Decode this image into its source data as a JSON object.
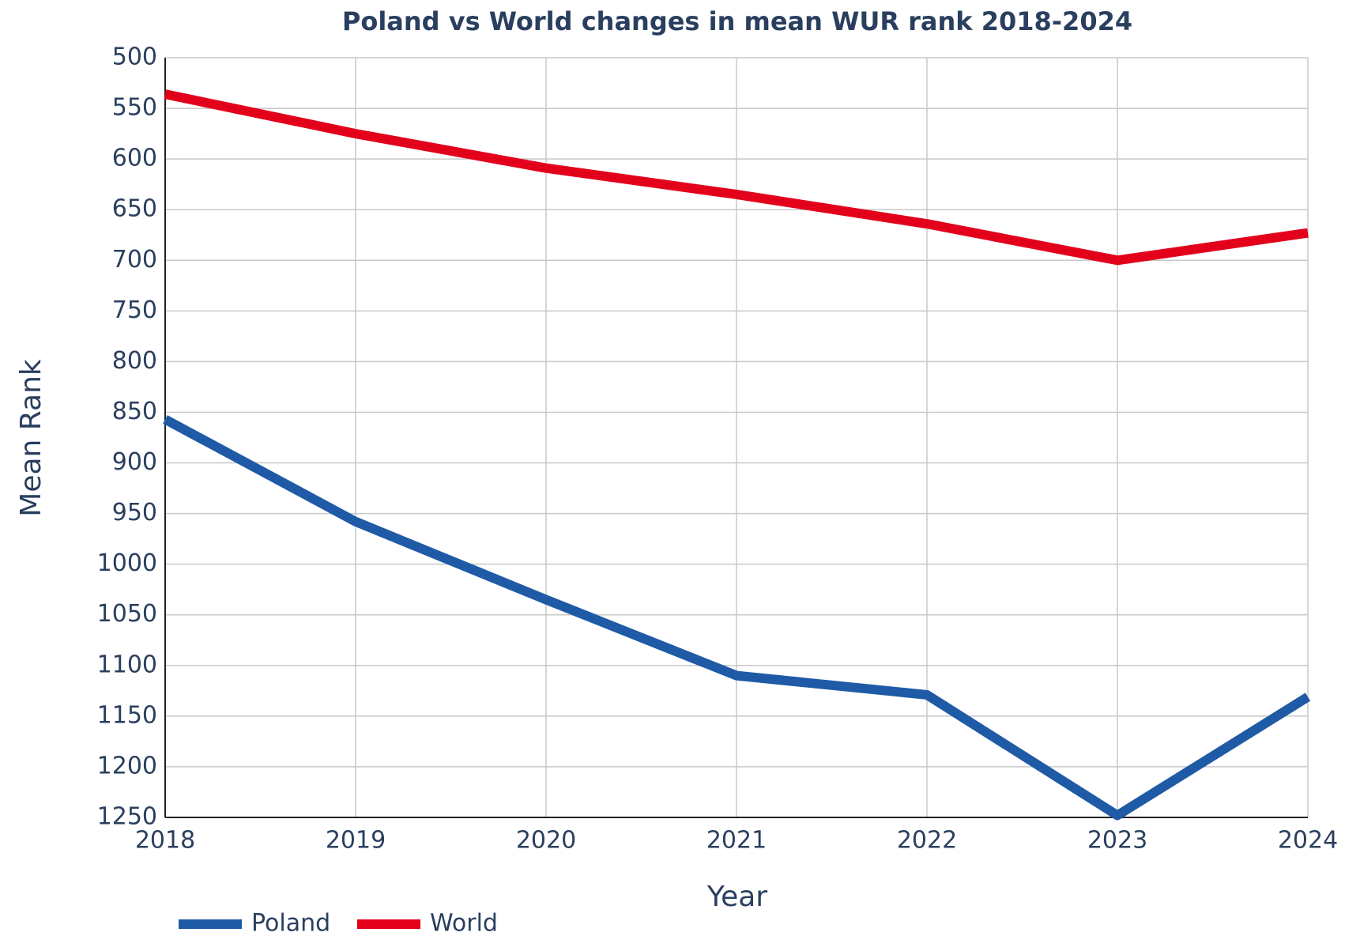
{
  "chart_data": {
    "type": "line",
    "title": "Poland vs World changes in mean WUR rank 2018-2024",
    "x_label": "Year",
    "y_label": "Mean Rank",
    "x": [
      2018,
      2019,
      2020,
      2021,
      2022,
      2023,
      2024
    ],
    "series": [
      {
        "name": "Poland",
        "color": "#1f5aa6",
        "values": [
          857,
          958,
          1035,
          1110,
          1129,
          1248,
          1131
        ]
      },
      {
        "name": "World",
        "color": "#e3001b",
        "values": [
          536,
          575,
          609,
          635,
          664,
          700,
          673
        ]
      }
    ],
    "xlim": [
      2018,
      2024
    ],
    "xticks": [
      2018,
      2019,
      2020,
      2021,
      2022,
      2023,
      2024
    ],
    "ylim": [
      1250,
      500
    ],
    "yticks": [
      500,
      550,
      600,
      650,
      700,
      750,
      800,
      850,
      900,
      950,
      1000,
      1050,
      1100,
      1150,
      1200,
      1250
    ],
    "grid": true,
    "legend": "bottom-left"
  }
}
